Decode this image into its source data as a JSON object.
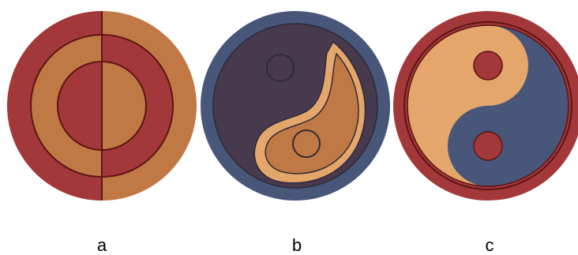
{
  "panels": [
    {
      "label": "a",
      "icon": "concentric-rings-emblem"
    },
    {
      "label": "b",
      "icon": "yin-yang-emblem"
    },
    {
      "label": "c",
      "icon": "yin-yang-emblem-with-ring"
    }
  ],
  "colors": {
    "red": "#a3383a",
    "orange": "#c07944",
    "dark_red_outline": "#5e1414",
    "navy": "#475679",
    "dark_purple": "#473a4f",
    "peach": "#e4a66b",
    "outline_dark": "#2e2a36"
  }
}
